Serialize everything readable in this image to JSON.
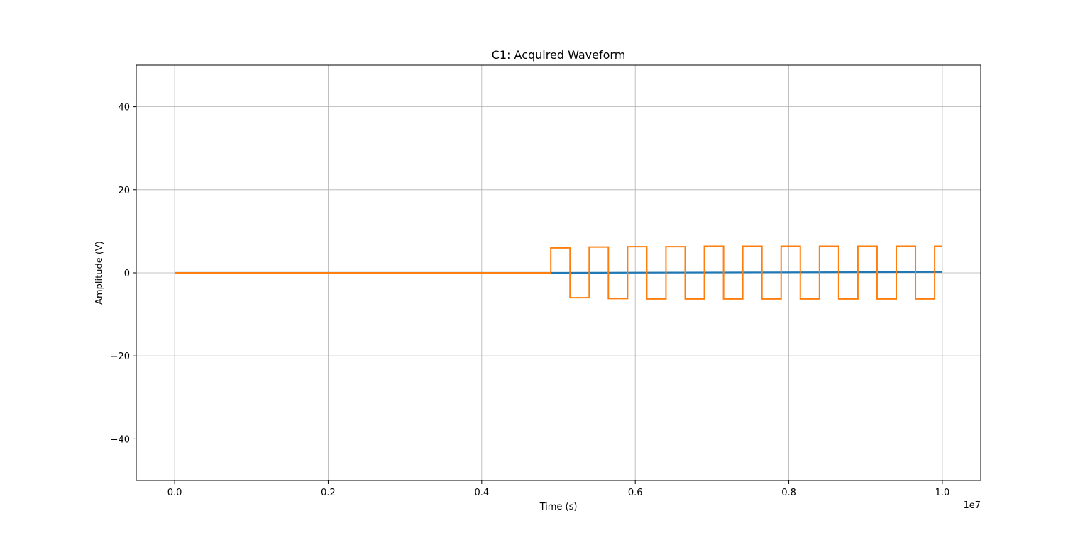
{
  "chart_data": {
    "type": "line",
    "title": "C1: Acquired Waveform",
    "xlabel": "Time (s)",
    "ylabel": "Amplitude (V)",
    "x_scale_label": "1e7",
    "xlim": [
      -0.05,
      1.05
    ],
    "ylim": [
      -50,
      50
    ],
    "x_ticks": [
      0.0,
      0.2,
      0.4,
      0.6,
      0.8,
      1.0
    ],
    "x_tick_labels": [
      "0.0",
      "0.2",
      "0.4",
      "0.6",
      "0.8",
      "1.0"
    ],
    "y_ticks": [
      -40,
      -20,
      0,
      20,
      40
    ],
    "y_tick_labels": [
      "−40",
      "−20",
      "0",
      "20",
      "40"
    ],
    "grid": true,
    "series": [
      {
        "color": "#1f77b4",
        "x": [
          0.0,
          0.49,
          1.0
        ],
        "y": [
          0.0,
          0.0,
          0.2
        ]
      },
      {
        "color": "#ff7f0e",
        "x": [
          0.0,
          0.49,
          0.49,
          0.515,
          0.515,
          0.54,
          0.54,
          0.565,
          0.565,
          0.59,
          0.59,
          0.615,
          0.615,
          0.64,
          0.64,
          0.665,
          0.665,
          0.69,
          0.69,
          0.715,
          0.715,
          0.74,
          0.74,
          0.765,
          0.765,
          0.79,
          0.79,
          0.815,
          0.815,
          0.84,
          0.84,
          0.865,
          0.865,
          0.89,
          0.89,
          0.915,
          0.915,
          0.94,
          0.94,
          0.965,
          0.965,
          0.99,
          0.99,
          1.0
        ],
        "y": [
          0.0,
          0.0,
          6.0,
          6.0,
          -6.0,
          -6.0,
          6.2,
          6.2,
          -6.2,
          -6.2,
          6.3,
          6.3,
          -6.3,
          -6.3,
          6.3,
          6.3,
          -6.3,
          -6.3,
          6.4,
          6.4,
          -6.3,
          -6.3,
          6.4,
          6.4,
          -6.3,
          -6.3,
          6.4,
          6.4,
          -6.3,
          -6.3,
          6.4,
          6.4,
          -6.3,
          -6.3,
          6.4,
          6.4,
          -6.3,
          -6.3,
          6.4,
          6.4,
          -6.3,
          -6.3,
          6.4,
          6.4
        ]
      }
    ]
  }
}
